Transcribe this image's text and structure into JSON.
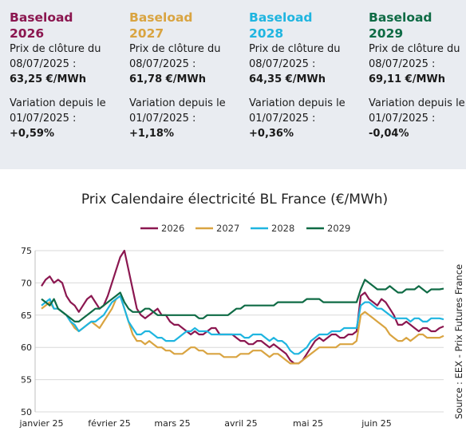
{
  "cards": [
    {
      "line1": "Baseload",
      "line2": "2026",
      "color": "#8b1750",
      "price_label_1": "Prix de clôture du",
      "price_label_2": "08/07/2025 :",
      "price_value": "63,25 €/MWh",
      "var_label_1": "Variation depuis le",
      "var_label_2": "01/07/2025 :",
      "var_value": "+0,59%"
    },
    {
      "line1": "Baseload",
      "line2": "2027",
      "color": "#d9a441",
      "price_label_1": "Prix de clôture du",
      "price_label_2": "08/07/2025 :",
      "price_value": "61,78 €/MWh",
      "var_label_1": "Variation depuis le",
      "var_label_2": "01/07/2025 :",
      "var_value": "+1,18%"
    },
    {
      "line1": "Baseload",
      "line2": "2028",
      "color": "#1fb5e0",
      "price_label_1": "Prix de clôture du",
      "price_label_2": "08/07/2025 :",
      "price_value": "64,35 €/MWh",
      "var_label_1": "Variation depuis le",
      "var_label_2": "01/07/2025 :",
      "var_value": "+0,36%"
    },
    {
      "line1": "Baseload",
      "line2": "2029",
      "color": "#0f6b45",
      "price_label_1": "Prix de clôture du",
      "price_label_2": "08/07/2025 :",
      "price_value": "69,11 €/MWh",
      "var_label_1": "Variation depuis le",
      "var_label_2": "01/07/2025 :",
      "var_value": "-0,04%"
    }
  ],
  "chart_data": {
    "type": "line",
    "title": "Prix Calendaire électricité BL France (€/MWh)",
    "source": "Source : EEX - Prix Futures France",
    "x_ticks": [
      "janvier 25",
      "février 25",
      "mars 25",
      "avril 25",
      "mai 25",
      "juin 25"
    ],
    "ylim": [
      50,
      75
    ],
    "y_ticks": [
      50,
      55,
      60,
      65,
      70,
      75
    ],
    "grid": "horizontal",
    "legend_position": "top",
    "series": [
      {
        "name": "2026",
        "color": "#8b1750",
        "values": [
          69.5,
          70.5,
          71,
          70,
          70.5,
          70,
          68,
          67,
          66.5,
          65.5,
          66.5,
          67.5,
          68,
          67,
          66,
          66.5,
          68,
          70,
          72,
          74,
          75,
          72,
          69,
          66,
          65,
          64.5,
          65,
          65.5,
          66,
          65,
          65,
          64,
          63.5,
          63.5,
          63,
          62.5,
          62,
          62.5,
          62,
          62,
          62.5,
          63,
          63,
          62,
          62,
          62,
          62,
          61.5,
          61,
          61,
          60.5,
          60.5,
          61,
          61,
          60.5,
          60,
          60.5,
          60,
          59.5,
          59,
          58,
          57.5,
          57.5,
          58,
          59,
          60,
          61,
          61.5,
          61,
          61.5,
          62,
          62,
          61.5,
          61.5,
          62,
          62,
          62.5,
          68,
          68.5,
          67.5,
          67,
          66.5,
          67.5,
          67,
          66,
          65,
          63.5,
          63.5,
          64,
          63.5,
          63,
          62.5,
          63,
          63,
          62.5,
          62.5,
          63,
          63.25
        ]
      },
      {
        "name": "2027",
        "color": "#d9a441",
        "values": [
          66,
          66.5,
          67,
          66,
          66,
          65.5,
          65,
          64,
          63,
          62.5,
          63,
          63.5,
          64,
          63.5,
          63,
          64,
          65,
          66,
          67.5,
          68,
          66,
          64,
          62,
          61,
          61,
          60.5,
          61,
          60.5,
          60,
          60,
          59.5,
          59.5,
          59,
          59,
          59,
          59.5,
          60,
          60,
          59.5,
          59.5,
          59,
          59,
          59,
          59,
          58.5,
          58.5,
          58.5,
          58.5,
          59,
          59,
          59,
          59.5,
          59.5,
          59.5,
          59,
          58.5,
          59,
          59,
          58.5,
          58,
          57.5,
          57.5,
          57.5,
          58,
          58.5,
          59,
          59.5,
          60,
          60,
          60,
          60,
          60,
          60.5,
          60.5,
          60.5,
          60.5,
          61,
          65,
          65.5,
          65,
          64.5,
          64,
          63.5,
          63,
          62,
          61.5,
          61,
          61,
          61.5,
          61,
          61.5,
          62,
          62,
          61.5,
          61.5,
          61.5,
          61.5,
          61.78
        ]
      },
      {
        "name": "2028",
        "color": "#1fb5e0",
        "values": [
          66.5,
          67,
          67.5,
          66,
          66,
          65.5,
          65,
          64,
          63.5,
          62.5,
          63,
          63.5,
          64,
          64,
          64.5,
          65,
          66,
          67,
          67.5,
          68,
          66,
          64,
          63,
          62,
          62,
          62.5,
          62.5,
          62,
          61.5,
          61.5,
          61,
          61,
          61,
          61.5,
          62,
          62.5,
          62.5,
          63,
          62.5,
          62.5,
          62.5,
          62,
          62,
          62,
          62,
          62,
          62,
          62,
          62,
          61.5,
          61.5,
          62,
          62,
          62,
          61.5,
          61,
          61.5,
          61,
          61,
          60.5,
          59.5,
          59,
          59,
          59.5,
          60,
          61,
          61.5,
          62,
          62,
          62,
          62.5,
          62.5,
          62.5,
          63,
          63,
          63,
          63,
          66.5,
          67,
          67,
          66.5,
          66,
          66,
          65.5,
          65,
          64.5,
          64.5,
          64.5,
          64.5,
          64,
          64.5,
          64.5,
          64,
          64,
          64.5,
          64.5,
          64.5,
          64.35
        ]
      },
      {
        "name": "2029",
        "color": "#0f6b45",
        "values": [
          67.5,
          67,
          66.5,
          67.5,
          66,
          65.5,
          65,
          64.5,
          64,
          64,
          64.5,
          65,
          65.5,
          66,
          66,
          66.5,
          67,
          67.5,
          68,
          68.5,
          67,
          66,
          65.5,
          65.5,
          65.5,
          66,
          66,
          65.5,
          65,
          65,
          65,
          65,
          65,
          65,
          65,
          65,
          65,
          65,
          64.5,
          64.5,
          65,
          65,
          65,
          65,
          65,
          65,
          65.5,
          66,
          66,
          66.5,
          66.5,
          66.5,
          66.5,
          66.5,
          66.5,
          66.5,
          66.5,
          67,
          67,
          67,
          67,
          67,
          67,
          67,
          67.5,
          67.5,
          67.5,
          67.5,
          67,
          67,
          67,
          67,
          67,
          67,
          67,
          67,
          67,
          69,
          70.5,
          70,
          69.5,
          69,
          69,
          69,
          69.5,
          69,
          68.5,
          68.5,
          69,
          69,
          69,
          69.5,
          69,
          68.5,
          69,
          69,
          69,
          69.11
        ]
      }
    ]
  }
}
